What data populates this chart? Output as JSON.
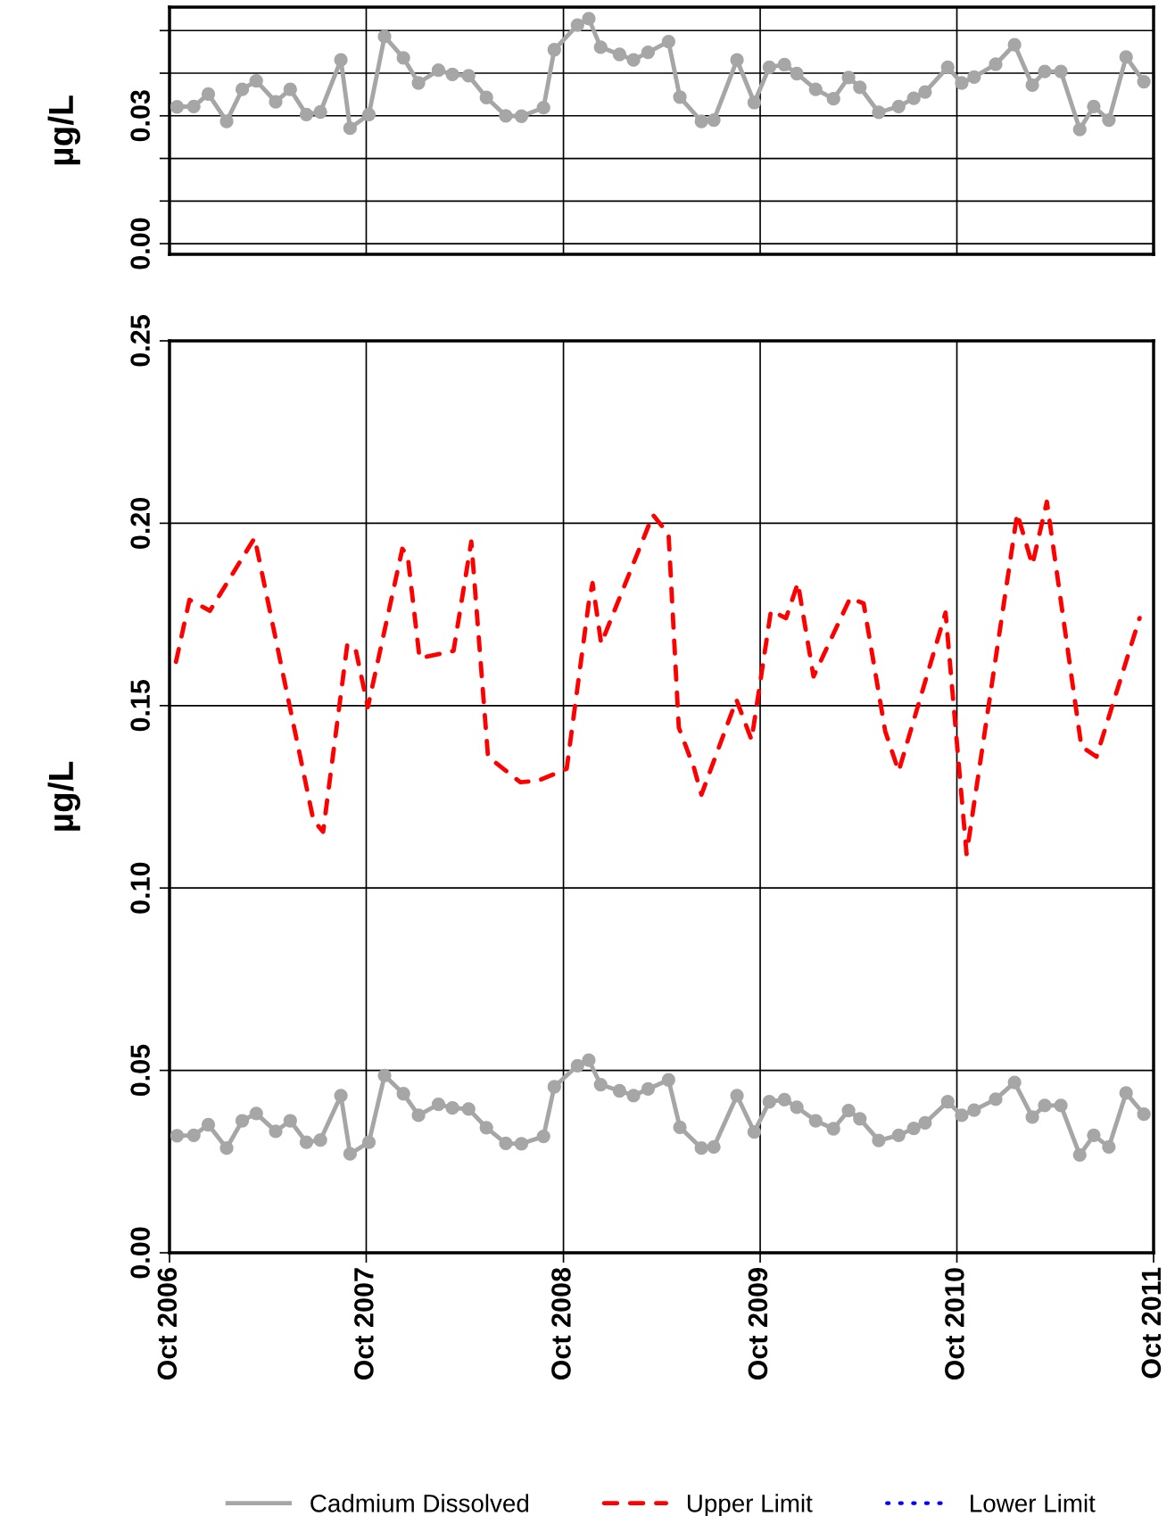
{
  "chart_data": [
    {
      "type": "line",
      "ylabel": "µg/L",
      "tick_labels": "y",
      "grid": true,
      "marker": "circle",
      "x": [
        "2006-10-15",
        "2006-11-15",
        "2006-12-12",
        "2007-01-15",
        "2007-02-13",
        "2007-03-11",
        "2007-04-16",
        "2007-05-13",
        "2007-06-12",
        "2007-07-08",
        "2007-08-15",
        "2007-09-01",
        "2007-10-06",
        "2007-11-04",
        "2007-12-09",
        "2008-01-06",
        "2008-02-12",
        "2008-03-09",
        "2008-04-08",
        "2008-05-11",
        "2008-06-16",
        "2008-07-15",
        "2008-08-25",
        "2008-09-14",
        "2008-10-27",
        "2008-11-17",
        "2008-12-09",
        "2009-01-13",
        "2009-02-08",
        "2009-03-07",
        "2009-04-14",
        "2009-05-05",
        "2009-06-14",
        "2009-07-07",
        "2009-08-19",
        "2009-09-20",
        "2009-10-18",
        "2009-11-15",
        "2009-12-08",
        "2010-01-12",
        "2010-02-14",
        "2010-03-14",
        "2010-04-04",
        "2010-05-09",
        "2010-06-15",
        "2010-07-13",
        "2010-08-03",
        "2010-09-14",
        "2010-10-10",
        "2010-11-02",
        "2010-12-12",
        "2011-01-16",
        "2011-02-18",
        "2011-03-13",
        "2011-04-12",
        "2011-05-17",
        "2011-06-12",
        "2011-07-10",
        "2011-08-11",
        "2011-09-13"
      ],
      "series": [
        {
          "color": "#a6a6a6",
          "line_style": "solid",
          "values": [
            0.0321,
            0.0322,
            0.0351,
            0.0287,
            0.0362,
            0.0382,
            0.0333,
            0.0362,
            0.0303,
            0.0309,
            0.0431,
            0.0271,
            0.0303,
            0.0486,
            0.0436,
            0.0377,
            0.0407,
            0.0397,
            0.0394,
            0.0343,
            0.03,
            0.0299,
            0.0319,
            0.0455,
            0.0513,
            0.0528,
            0.0461,
            0.0444,
            0.0431,
            0.0449,
            0.0474,
            0.0344,
            0.0287,
            0.029,
            0.0431,
            0.0331,
            0.0414,
            0.042,
            0.0399,
            0.0362,
            0.034,
            0.039,
            0.0367,
            0.0308,
            0.0322,
            0.0341,
            0.0356,
            0.0414,
            0.0377,
            0.0391,
            0.0421,
            0.0467,
            0.0372,
            0.0404,
            0.0404,
            0.0268,
            0.0322,
            0.029,
            0.0438,
            0.038
          ]
        }
      ],
      "xlim": [
        "2006-10-01",
        "2011-10-01"
      ],
      "xticks": [
        {
          "value": "2006-10-01",
          "label": null
        },
        {
          "value": "2007-10-01",
          "label": null
        },
        {
          "value": "2008-10-01",
          "label": null
        },
        {
          "value": "2009-10-01",
          "label": null
        },
        {
          "value": "2010-10-01",
          "label": null
        },
        {
          "value": "2011-10-01",
          "label": null
        }
      ],
      "ylim": [
        -0.0025,
        0.0555
      ],
      "yticks": [
        {
          "value": 0,
          "label": "0.00"
        },
        {
          "value": 0.01,
          "label": null
        },
        {
          "value": 0.02,
          "label": null
        },
        {
          "value": 0.03,
          "label": "0.03"
        },
        {
          "value": 0.04,
          "label": null
        },
        {
          "value": 0.05,
          "label": null
        }
      ]
    },
    {
      "type": "line",
      "ylabel": "µg/L",
      "grid": true,
      "legend": "bottom",
      "series": [
        {
          "name": "Cadmium Dissolved",
          "color": "#a6a6a6",
          "marker": "circle",
          "line_style": "solid",
          "x": [
            "2006-10-15",
            "2006-11-15",
            "2006-12-12",
            "2007-01-15",
            "2007-02-13",
            "2007-03-11",
            "2007-04-16",
            "2007-05-13",
            "2007-06-12",
            "2007-07-08",
            "2007-08-15",
            "2007-09-01",
            "2007-10-06",
            "2007-11-04",
            "2007-12-09",
            "2008-01-06",
            "2008-02-12",
            "2008-03-09",
            "2008-04-08",
            "2008-05-11",
            "2008-06-16",
            "2008-07-15",
            "2008-08-25",
            "2008-09-14",
            "2008-10-27",
            "2008-11-17",
            "2008-12-09",
            "2009-01-13",
            "2009-02-08",
            "2009-03-07",
            "2009-04-14",
            "2009-05-05",
            "2009-06-14",
            "2009-07-07",
            "2009-08-19",
            "2009-09-20",
            "2009-10-18",
            "2009-11-15",
            "2009-12-08",
            "2010-01-12",
            "2010-02-14",
            "2010-03-14",
            "2010-04-04",
            "2010-05-09",
            "2010-06-15",
            "2010-07-13",
            "2010-08-03",
            "2010-09-14",
            "2010-10-10",
            "2010-11-02",
            "2010-12-12",
            "2011-01-16",
            "2011-02-18",
            "2011-03-13",
            "2011-04-12",
            "2011-05-17",
            "2011-06-12",
            "2011-07-10",
            "2011-08-11",
            "2011-09-13"
          ],
          "values": [
            0.0321,
            0.0322,
            0.0351,
            0.0287,
            0.0362,
            0.0382,
            0.0333,
            0.0362,
            0.0303,
            0.0309,
            0.0431,
            0.0271,
            0.0303,
            0.0486,
            0.0436,
            0.0377,
            0.0407,
            0.0397,
            0.0394,
            0.0343,
            0.03,
            0.0299,
            0.0319,
            0.0455,
            0.0513,
            0.0528,
            0.0461,
            0.0444,
            0.0431,
            0.0449,
            0.0474,
            0.0344,
            0.0287,
            0.029,
            0.0431,
            0.0331,
            0.0414,
            0.042,
            0.0399,
            0.0362,
            0.034,
            0.039,
            0.0367,
            0.0308,
            0.0322,
            0.0341,
            0.0356,
            0.0414,
            0.0377,
            0.0391,
            0.0421,
            0.0467,
            0.0372,
            0.0404,
            0.0404,
            0.0268,
            0.0322,
            0.029,
            0.0438,
            0.038
          ]
        },
        {
          "name": "Upper Limit",
          "color": "#ff0000",
          "marker": "none",
          "line_style": "dashed",
          "x": [
            "2006-10-13",
            "2006-11-07",
            "2006-12-15",
            "2007-03-08",
            "2007-06-25",
            "2007-07-13",
            "2007-08-27",
            "2007-09-12",
            "2007-10-04",
            "2007-12-07",
            "2007-12-17",
            "2008-01-08",
            "2008-03-11",
            "2008-04-13",
            "2008-05-14",
            "2008-07-13",
            "2008-08-15",
            "2008-10-07",
            "2008-11-17",
            "2008-11-24",
            "2008-12-10",
            "2009-03-16",
            "2009-04-14",
            "2009-05-03",
            "2009-05-31",
            "2009-06-14",
            "2009-08-18",
            "2009-09-15",
            "2009-10-21",
            "2009-11-18",
            "2009-12-10",
            "2010-01-08",
            "2010-03-17",
            "2010-04-11",
            "2010-05-21",
            "2010-06-15",
            "2010-09-10",
            "2010-10-19",
            "2011-01-21",
            "2011-02-18",
            "2011-03-17",
            "2011-05-20",
            "2011-06-17",
            "2011-09-05"
          ],
          "values": [
            0.162,
            0.179,
            0.176,
            0.196,
            0.1186,
            0.1154,
            0.1669,
            0.165,
            0.1496,
            0.193,
            0.191,
            0.163,
            0.165,
            0.195,
            0.136,
            0.129,
            0.1294,
            0.1327,
            0.1783,
            0.1836,
            0.167,
            0.2023,
            0.197,
            0.144,
            0.133,
            0.1256,
            0.1516,
            0.1406,
            0.176,
            0.174,
            0.1836,
            0.158,
            0.1795,
            0.178,
            0.143,
            0.132,
            0.1755,
            0.1093,
            0.2027,
            0.1886,
            0.2059,
            0.1388,
            0.136,
            0.174
          ]
        },
        {
          "name": "Lower Limit",
          "color": "#0000ff",
          "marker": "none",
          "line_style": "dotted"
        }
      ],
      "xlim": [
        "2006-10-01",
        "2011-10-01"
      ],
      "xticks": [
        {
          "value": "2006-10-01",
          "label": "Oct 2006"
        },
        {
          "value": "2007-10-01",
          "label": "Oct 2007"
        },
        {
          "value": "2008-10-01",
          "label": "Oct 2008"
        },
        {
          "value": "2009-10-01",
          "label": "Oct 2009"
        },
        {
          "value": "2010-10-01",
          "label": "Oct 2010"
        },
        {
          "value": "2011-10-01",
          "label": "Oct 2011"
        }
      ],
      "ylim": [
        0,
        0.25
      ],
      "yticks": [
        {
          "value": 0,
          "label": "0.00"
        },
        {
          "value": 0.05,
          "label": "0.05"
        },
        {
          "value": 0.1,
          "label": "0.10"
        },
        {
          "value": 0.15,
          "label": "0.15"
        },
        {
          "value": 0.2,
          "label": "0.20"
        },
        {
          "value": 0.25,
          "label": "0.25"
        }
      ]
    }
  ]
}
